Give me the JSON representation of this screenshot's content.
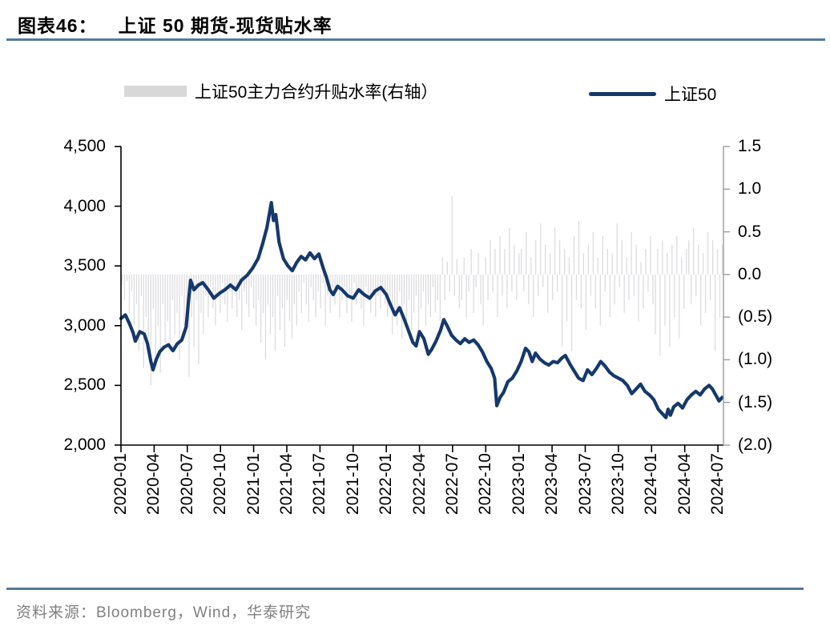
{
  "header": {
    "label": "图表46：",
    "title": "上证 50 期货-现货贴水率"
  },
  "legend": {
    "bar_series_label": "上证50主力合约升贴水率(右轴）",
    "line_series_label": "上证50"
  },
  "source": {
    "text": "资料来源：Bloomberg，Wind，华泰研究"
  },
  "colors": {
    "line": "#16386b",
    "bar": "#dcdcdf",
    "rule": "#54799f",
    "left_axis": "#000000",
    "right_axis": "#9b9b9b",
    "source_text": "#808080",
    "legend_bar_swatch": "#d8d8d8"
  },
  "chart_data": {
    "type": "line+bar",
    "title": "上证 50 期货-现货贴水率",
    "x_unit": "months since 2020-01",
    "x_max": 54.5,
    "x_tick_months": [
      0,
      3,
      6,
      9,
      12,
      15,
      18,
      21,
      24,
      27,
      30,
      33,
      36,
      39,
      42,
      45,
      48,
      51,
      54
    ],
    "x_tick_labels": [
      "2020-01",
      "2020-04",
      "2020-07",
      "2020-10",
      "2021-01",
      "2021-04",
      "2021-07",
      "2021-10",
      "2022-01",
      "2022-04",
      "2022-07",
      "2022-10",
      "2023-01",
      "2023-04",
      "2023-07",
      "2023-10",
      "2024-01",
      "2024-04",
      "2024-07"
    ],
    "left_axis": {
      "min": 2000,
      "max": 4500,
      "tick_labels": [
        "4,500",
        "4,000",
        "3,500",
        "3,000",
        "2,500",
        "2,000"
      ]
    },
    "right_axis": {
      "min": -2.0,
      "max": 1.5,
      "tick_labels": [
        "1.5",
        "1.0",
        "0.5",
        "0.0",
        "(0.5)",
        "(1.0)",
        "(1.5)",
        "(2.0)"
      ]
    },
    "series": [
      {
        "name": "上证50",
        "type": "line",
        "axis": "left",
        "color": "#16386b",
        "points": [
          [
            0,
            3060
          ],
          [
            0.4,
            3090
          ],
          [
            0.8,
            3010
          ],
          [
            1.1,
            2940
          ],
          [
            1.3,
            2870
          ],
          [
            1.7,
            2950
          ],
          [
            2.1,
            2930
          ],
          [
            2.4,
            2850
          ],
          [
            2.7,
            2700
          ],
          [
            2.9,
            2630
          ],
          [
            3.2,
            2720
          ],
          [
            3.5,
            2780
          ],
          [
            3.9,
            2820
          ],
          [
            4.3,
            2840
          ],
          [
            4.7,
            2790
          ],
          [
            5.1,
            2850
          ],
          [
            5.5,
            2880
          ],
          [
            5.9,
            2990
          ],
          [
            6.1,
            3200
          ],
          [
            6.3,
            3380
          ],
          [
            6.6,
            3300
          ],
          [
            7.0,
            3340
          ],
          [
            7.4,
            3360
          ],
          [
            7.9,
            3300
          ],
          [
            8.4,
            3230
          ],
          [
            8.9,
            3270
          ],
          [
            9.4,
            3300
          ],
          [
            9.9,
            3340
          ],
          [
            10.4,
            3300
          ],
          [
            10.9,
            3380
          ],
          [
            11.4,
            3420
          ],
          [
            11.9,
            3480
          ],
          [
            12.4,
            3560
          ],
          [
            12.8,
            3680
          ],
          [
            13.2,
            3820
          ],
          [
            13.45,
            3950
          ],
          [
            13.6,
            4030
          ],
          [
            13.8,
            3880
          ],
          [
            14.0,
            3930
          ],
          [
            14.3,
            3700
          ],
          [
            14.7,
            3560
          ],
          [
            15.1,
            3500
          ],
          [
            15.5,
            3460
          ],
          [
            15.9,
            3530
          ],
          [
            16.3,
            3580
          ],
          [
            16.7,
            3550
          ],
          [
            17.1,
            3610
          ],
          [
            17.5,
            3560
          ],
          [
            17.9,
            3600
          ],
          [
            18.3,
            3480
          ],
          [
            18.6,
            3400
          ],
          [
            18.9,
            3300
          ],
          [
            19.2,
            3260
          ],
          [
            19.6,
            3330
          ],
          [
            20.0,
            3300
          ],
          [
            20.5,
            3250
          ],
          [
            21.0,
            3230
          ],
          [
            21.5,
            3300
          ],
          [
            22.0,
            3260
          ],
          [
            22.5,
            3230
          ],
          [
            23.0,
            3290
          ],
          [
            23.5,
            3320
          ],
          [
            24.0,
            3260
          ],
          [
            24.4,
            3170
          ],
          [
            24.8,
            3090
          ],
          [
            25.2,
            3150
          ],
          [
            25.6,
            3060
          ],
          [
            26.0,
            2960
          ],
          [
            26.4,
            2860
          ],
          [
            26.7,
            2830
          ],
          [
            27.0,
            2950
          ],
          [
            27.4,
            2890
          ],
          [
            27.8,
            2760
          ],
          [
            28.1,
            2800
          ],
          [
            28.5,
            2870
          ],
          [
            28.9,
            2960
          ],
          [
            29.2,
            3050
          ],
          [
            29.5,
            3000
          ],
          [
            29.9,
            2920
          ],
          [
            30.3,
            2880
          ],
          [
            30.7,
            2850
          ],
          [
            31.1,
            2890
          ],
          [
            31.5,
            2860
          ],
          [
            31.9,
            2880
          ],
          [
            32.3,
            2840
          ],
          [
            32.7,
            2780
          ],
          [
            33.1,
            2700
          ],
          [
            33.5,
            2640
          ],
          [
            33.8,
            2560
          ],
          [
            34.0,
            2330
          ],
          [
            34.3,
            2400
          ],
          [
            34.6,
            2440
          ],
          [
            35.0,
            2530
          ],
          [
            35.4,
            2560
          ],
          [
            35.8,
            2620
          ],
          [
            36.2,
            2700
          ],
          [
            36.6,
            2810
          ],
          [
            36.9,
            2780
          ],
          [
            37.2,
            2700
          ],
          [
            37.5,
            2770
          ],
          [
            37.9,
            2720
          ],
          [
            38.3,
            2690
          ],
          [
            38.7,
            2670
          ],
          [
            39.1,
            2700
          ],
          [
            39.5,
            2690
          ],
          [
            39.9,
            2730
          ],
          [
            40.2,
            2750
          ],
          [
            40.6,
            2680
          ],
          [
            41.0,
            2620
          ],
          [
            41.4,
            2560
          ],
          [
            41.8,
            2540
          ],
          [
            42.2,
            2630
          ],
          [
            42.6,
            2590
          ],
          [
            43.0,
            2640
          ],
          [
            43.4,
            2700
          ],
          [
            43.8,
            2660
          ],
          [
            44.2,
            2610
          ],
          [
            44.6,
            2580
          ],
          [
            45.0,
            2560
          ],
          [
            45.4,
            2540
          ],
          [
            45.8,
            2500
          ],
          [
            46.2,
            2430
          ],
          [
            46.6,
            2470
          ],
          [
            47.0,
            2510
          ],
          [
            47.4,
            2450
          ],
          [
            47.8,
            2420
          ],
          [
            48.2,
            2380
          ],
          [
            48.6,
            2300
          ],
          [
            49.0,
            2260
          ],
          [
            49.3,
            2230
          ],
          [
            49.5,
            2300
          ],
          [
            49.7,
            2250
          ],
          [
            50.0,
            2320
          ],
          [
            50.4,
            2350
          ],
          [
            50.8,
            2310
          ],
          [
            51.2,
            2380
          ],
          [
            51.6,
            2420
          ],
          [
            52.0,
            2450
          ],
          [
            52.4,
            2420
          ],
          [
            52.8,
            2470
          ],
          [
            53.2,
            2500
          ],
          [
            53.5,
            2470
          ],
          [
            53.8,
            2420
          ],
          [
            54.1,
            2370
          ],
          [
            54.4,
            2400
          ]
        ]
      },
      {
        "name": "上证50主力合约升贴水率(右轴）",
        "type": "bar",
        "axis": "right",
        "color": "#dcdcdf",
        "values": [
          -0.12,
          -0.3,
          -0.08,
          -0.45,
          -0.2,
          -0.6,
          -0.35,
          -0.9,
          -0.25,
          -1.1,
          -0.5,
          -0.75,
          -1.3,
          -0.4,
          -0.95,
          -0.6,
          -1.15,
          -0.35,
          -0.8,
          -0.55,
          -0.9,
          -0.3,
          -0.7,
          -0.45,
          -1.0,
          -0.25,
          -0.6,
          -0.4,
          -1.2,
          -0.5,
          -0.85,
          -0.3,
          -1.05,
          -0.45,
          -0.7,
          -0.25,
          -0.5,
          -0.15,
          -0.4,
          -0.6,
          -0.2,
          -0.45,
          -0.1,
          -0.35,
          -0.55,
          -0.2,
          -0.4,
          -0.15,
          -0.5,
          -0.3,
          -0.65,
          -0.2,
          -0.35,
          -0.5,
          -0.15,
          -0.4,
          -0.6,
          -0.3,
          -0.8,
          -0.45,
          -1.0,
          -0.35,
          -0.7,
          -0.5,
          -0.9,
          -0.25,
          -0.65,
          -0.4,
          -0.85,
          -0.3,
          -0.55,
          -0.75,
          -0.35,
          -0.6,
          -0.2,
          -0.45,
          -0.1,
          -0.35,
          -0.55,
          -0.15,
          -0.3,
          -0.5,
          -0.2,
          -0.4,
          -0.1,
          -0.6,
          -0.25,
          -0.45,
          -0.15,
          -0.35,
          -0.2,
          -0.5,
          -0.3,
          -0.15,
          -0.45,
          -0.25,
          -0.55,
          -0.1,
          -0.35,
          -0.2,
          -0.4,
          -0.6,
          -0.15,
          -0.3,
          -0.45,
          -0.2,
          -0.5,
          -0.25,
          -0.4,
          -0.15,
          -0.35,
          -0.5,
          -0.25,
          -0.7,
          -0.4,
          -0.6,
          -0.2,
          -0.75,
          -0.35,
          -0.55,
          -0.3,
          -0.65,
          -0.45,
          -0.25,
          -0.7,
          -0.4,
          -0.2,
          -0.6,
          -0.35,
          -0.5,
          -0.15,
          -0.45,
          -0.3,
          -0.55,
          0.2,
          -0.3,
          0.15,
          -0.2,
          0.92,
          -0.25,
          0.18,
          -0.4,
          -0.3,
          0.2,
          -0.5,
          -0.2,
          0.3,
          -0.45,
          -0.15,
          0.25,
          -0.35,
          -0.6,
          0.2,
          -0.3,
          0.4,
          -0.2,
          0.3,
          -0.5,
          0.45,
          -0.25,
          0.3,
          -0.4,
          0.55,
          -0.2,
          0.35,
          -0.3,
          0.25,
          0.3,
          -0.2,
          0.5,
          -0.35,
          0.2,
          -0.5,
          0.4,
          -0.25,
          0.6,
          -0.15,
          0.35,
          -0.45,
          0.25,
          -0.3,
          0.55,
          -0.2,
          0.4,
          -0.85,
          0.3,
          -0.55,
          0.2,
          -0.9,
          0.45,
          -0.3,
          0.63,
          -0.4,
          0.25,
          -0.65,
          0.35,
          -0.25,
          0.5,
          -0.4,
          0.2,
          -0.6,
          0.45,
          -0.2,
          0.3,
          -0.5,
          0.25,
          -0.35,
          0.6,
          -0.15,
          0.4,
          -0.45,
          0.2,
          -0.3,
          0.5,
          -0.25,
          0.35,
          -0.55,
          0.15,
          -0.4,
          0.3,
          -0.2,
          0.45,
          -0.35,
          -0.7,
          0.3,
          -0.95,
          0.4,
          -0.6,
          0.25,
          -0.85,
          0.35,
          -0.5,
          0.45,
          -0.75,
          0.2,
          -0.4,
          0.3,
          0.4,
          -0.35,
          0.55,
          -0.25,
          0.35,
          -0.6,
          0.25,
          -0.45,
          0.5,
          -0.3,
          0.4,
          -0.9,
          0.3,
          -0.5,
          0.35
        ]
      }
    ]
  }
}
